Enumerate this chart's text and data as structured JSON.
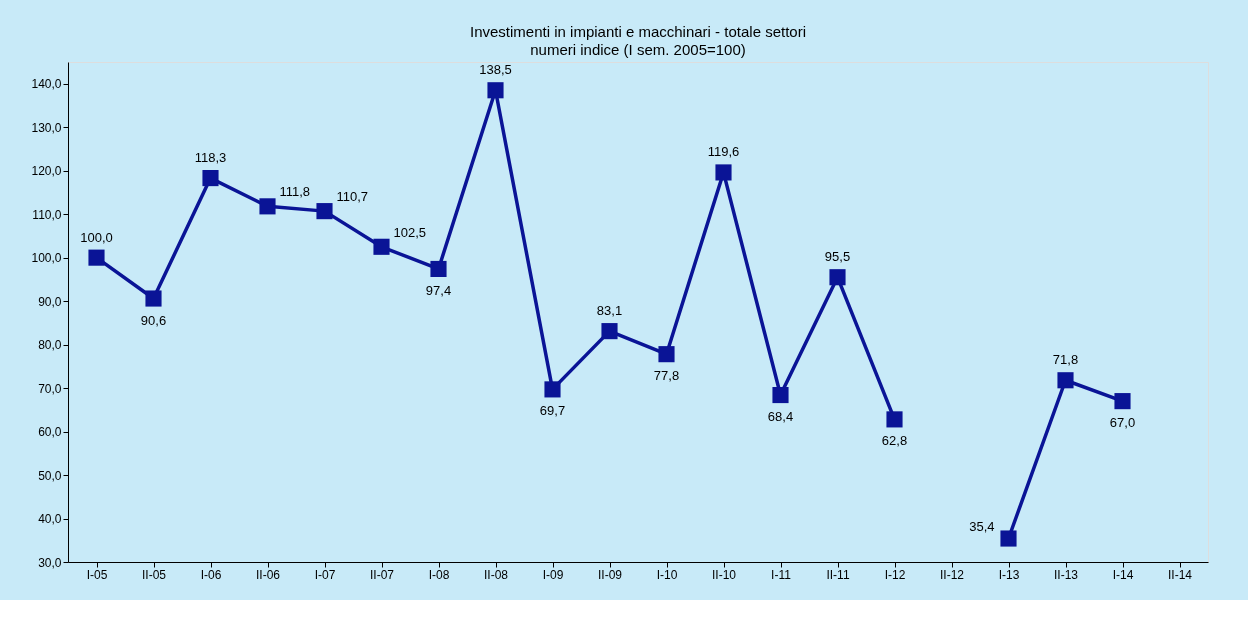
{
  "chart_data": {
    "type": "line",
    "title": "Investimenti in impianti e macchinari - totale settori",
    "subtitle": "numeri indice (I sem. 2005=100)",
    "categories": [
      "I-05",
      "II-05",
      "I-06",
      "II-06",
      "I-07",
      "II-07",
      "I-08",
      "II-08",
      "I-09",
      "II-09",
      "I-10",
      "II-10",
      "I-11",
      "II-11",
      "I-12",
      "II-12",
      "I-13",
      "II-13",
      "I-14",
      "II-14"
    ],
    "series": [
      {
        "color": "#0a1496",
        "values": [
          100.0,
          90.6,
          118.3,
          111.8,
          110.7,
          102.5,
          97.4,
          138.5,
          69.7,
          83.1,
          77.8,
          119.6,
          68.4,
          95.5,
          62.8,
          null,
          35.4,
          71.8,
          67.0,
          null
        ],
        "value_labels": [
          "100,0",
          "90,6",
          "118,3",
          "111,8",
          "110,7",
          "102,5",
          "97,4",
          "138,5",
          "69,7",
          "83,1",
          "77,8",
          "119,6",
          "68,4",
          "95,5",
          "62,8",
          null,
          "35,4",
          "71,8",
          "67,0",
          null
        ]
      }
    ],
    "ylim": [
      30,
      145
    ],
    "yticks": [
      {
        "value": 30,
        "label": "30,0"
      },
      {
        "value": 40,
        "label": "40,0"
      },
      {
        "value": 50,
        "label": "50,0"
      },
      {
        "value": 60,
        "label": "60,0"
      },
      {
        "value": 70,
        "label": "70,0"
      },
      {
        "value": 80,
        "label": "80,0"
      },
      {
        "value": 90,
        "label": "90,0"
      },
      {
        "value": 100,
        "label": "100,0"
      },
      {
        "value": 110,
        "label": "110,0"
      },
      {
        "value": 120,
        "label": "120,0"
      },
      {
        "value": 130,
        "label": "130,0"
      },
      {
        "value": 140,
        "label": "140,0"
      }
    ],
    "marker": "square",
    "line_style": "solid",
    "grid": false
  }
}
